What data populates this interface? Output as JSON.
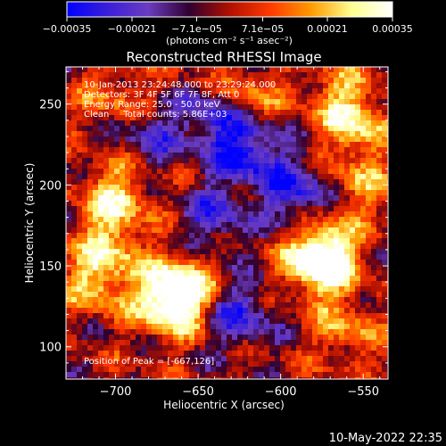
{
  "chart_data": {
    "type": "heatmap",
    "title": "Reconstructed RHESSI Image",
    "xlabel": "Heliocentric X (arcsec)",
    "ylabel": "Heliocentric Y (arcsec)",
    "xlim": [
      -730,
      -535
    ],
    "ylim": [
      80,
      273
    ],
    "xticks": [
      -700,
      -650,
      -600,
      -550
    ],
    "xtick_labels": [
      "−700",
      "−650",
      "−600",
      "−550"
    ],
    "yticks": [
      100,
      150,
      200,
      250
    ],
    "ytick_labels": [
      "100",
      "150",
      "200",
      "250"
    ],
    "colorbar": {
      "ticks": [
        -0.00035,
        -0.00021,
        -7.1e-05,
        7.1e-05,
        0.00021,
        0.00035
      ],
      "tick_labels": [
        "−0.00035",
        "−0.00021",
        "−7.1e−05",
        "7.1e−05",
        "0.00021",
        "0.00035"
      ],
      "unit_label": "(photons cm⁻² s⁻¹ asec⁻²)",
      "range": [
        -0.00035,
        0.00035
      ],
      "colors": [
        "#0000ff",
        "#3a1fd8",
        "#6a3cc0",
        "#300030",
        "#b01000",
        "#ff3a00",
        "#ff9a00",
        "#ffff90",
        "#ffffff"
      ]
    },
    "annotations": [
      "10-Jan-2013 23:24:48.000 to 23:29:24.000",
      "Detectors: 3F 4F 5F 6F 7F 8F, Att 0",
      "Energy Range: 25.0 - 50.0 keV",
      "Clean     Total counts: 5.86E+03"
    ],
    "peak_label": "Position of Peak = [-667,126]",
    "peak": [
      -667,
      126
    ],
    "bright_regions": [
      {
        "x": -667,
        "y": 126,
        "level": 1.0
      },
      {
        "x": -660,
        "y": 137,
        "level": 0.85
      },
      {
        "x": -577,
        "y": 150,
        "level": 0.95
      },
      {
        "x": -573,
        "y": 160,
        "level": 0.8
      },
      {
        "x": -700,
        "y": 195,
        "level": 0.75
      },
      {
        "x": -710,
        "y": 140,
        "level": 0.7
      },
      {
        "x": -703,
        "y": 165,
        "level": 0.6
      },
      {
        "x": -553,
        "y": 235,
        "level": 0.65
      },
      {
        "x": -565,
        "y": 255,
        "level": 0.55
      },
      {
        "x": -552,
        "y": 200,
        "level": 0.5
      },
      {
        "x": -620,
        "y": 255,
        "level": 0.5
      },
      {
        "x": -560,
        "y": 110,
        "level": 0.5
      },
      {
        "x": -700,
        "y": 255,
        "level": 0.45
      }
    ],
    "dim_regions": [
      {
        "x": -620,
        "y": 220,
        "level": -0.9
      },
      {
        "x": -640,
        "y": 240,
        "level": -0.7
      },
      {
        "x": -590,
        "y": 195,
        "level": -0.8
      },
      {
        "x": -625,
        "y": 120,
        "level": -0.7
      },
      {
        "x": -640,
        "y": 180,
        "level": -0.6
      },
      {
        "x": -680,
        "y": 230,
        "level": -0.5
      }
    ]
  },
  "timestamp": "10-May-2022 22:35"
}
